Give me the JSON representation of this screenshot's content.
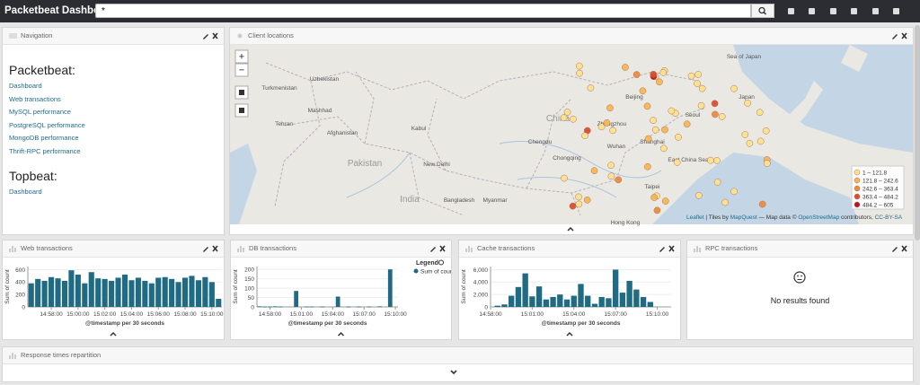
{
  "topbar": {
    "title": "Packetbeat Dashboard",
    "query": "*"
  },
  "navigation": {
    "title": "Navigation",
    "sections": [
      {
        "heading": "Packetbeat:",
        "links": [
          "Dashboard",
          "Web transactions",
          "MySQL performance",
          "PostgreSQL performance",
          "MongoDB performance",
          "Thrift-RPC performance"
        ]
      },
      {
        "heading": "Topbeat:",
        "links": [
          "Dashboard"
        ]
      }
    ]
  },
  "map": {
    "title": "Client locations",
    "controls": [
      "+",
      "−"
    ],
    "legend": [
      {
        "label": "1 – 121.8",
        "color": "#fde38a"
      },
      {
        "label": "121.8 – 242.6",
        "color": "#f7b84f"
      },
      {
        "label": "242.6 – 363.4",
        "color": "#ef8c3a"
      },
      {
        "label": "363.4 – 484.2",
        "color": "#dc4f2b"
      },
      {
        "label": "484.2 – 605",
        "color": "#b5161e"
      }
    ],
    "places": [
      "China",
      "India",
      "Pakistan",
      "Afghanistan",
      "Turkmenistan",
      "Uzbekistan",
      "Tehran",
      "Mashhad",
      "Kabul",
      "New Delhi",
      "Bangladesh",
      "Myanmar",
      "Chongqing",
      "Wuhan",
      "Shanghai",
      "Taipei",
      "Hong Kong",
      "Beijing",
      "Seoul",
      "Japan",
      "Sea of Japan",
      "East China Sea",
      "Zhengzhou",
      "Chengdu"
    ],
    "attribution": [
      {
        "text": "Leaflet",
        "link": true
      },
      {
        "text": " | Tiles by ",
        "link": false
      },
      {
        "text": "MapQuest",
        "link": true
      },
      {
        "text": " — Map data © ",
        "link": false
      },
      {
        "text": "OpenStreetMap",
        "link": true
      },
      {
        "text": " contributors, ",
        "link": false
      },
      {
        "text": "CC-BY-SA",
        "link": true
      }
    ]
  },
  "web": {
    "type": "bar",
    "title": "Web transactions",
    "y_label": "Sum of count",
    "x_label": "@timestamp per 30 seconds",
    "color": "#1f6b84",
    "grid": true,
    "x": [
      "14:56:30",
      "14:57:00",
      "14:57:30",
      "14:58:00",
      "14:58:30",
      "14:59:00",
      "14:59:30",
      "15:00:00",
      "15:00:30",
      "15:01:00",
      "15:01:30",
      "15:02:00",
      "15:02:30",
      "15:03:00",
      "15:03:30",
      "15:04:00",
      "15:04:30",
      "15:05:00",
      "15:05:30",
      "15:06:00",
      "15:06:30",
      "15:07:00",
      "15:07:30",
      "15:08:00",
      "15:08:30",
      "15:09:00",
      "15:09:30",
      "15:10:00",
      "15:10:30"
    ],
    "values": [
      380,
      450,
      420,
      480,
      460,
      420,
      590,
      520,
      380,
      560,
      460,
      450,
      420,
      470,
      520,
      430,
      470,
      420,
      380,
      470,
      480,
      450,
      400,
      470,
      500,
      430,
      480,
      400,
      130
    ],
    "xlim": [
      "14:56:15",
      "15:10:45"
    ],
    "xticks": [
      "14:58:00",
      "15:00:00",
      "15:02:00",
      "15:04:00",
      "15:06:00",
      "15:08:00",
      "15:10:00"
    ],
    "ylim": [
      0,
      650
    ],
    "yticks": [
      0,
      200,
      400,
      600
    ]
  },
  "db": {
    "type": "bar",
    "title": "DB transactions",
    "y_label": "Sum of count",
    "x_label": "@timestamp per 30 seconds",
    "color": "#1f6b84",
    "grid": true,
    "legend_title": "Legend",
    "series_name": "Sum of count",
    "x": [
      "14:57:00",
      "14:57:30",
      "14:58:00",
      "14:58:30",
      "14:59:00",
      "15:00:30",
      "15:01:30",
      "15:02:00",
      "15:03:00",
      "15:04:30",
      "15:05:30",
      "15:06:30",
      "15:07:30",
      "15:08:30",
      "15:09:30"
    ],
    "values": [
      3,
      2,
      2,
      3,
      2,
      85,
      2,
      2,
      2,
      55,
      2,
      2,
      2,
      3,
      200
    ],
    "xlim": [
      "14:56:45",
      "15:10:15"
    ],
    "xticks": [
      "14:58:00",
      "15:01:00",
      "15:04:00",
      "15:07:00",
      "15:10:00"
    ],
    "ylim": [
      0,
      215
    ],
    "yticks": [
      0,
      50,
      100,
      150,
      200
    ]
  },
  "cache": {
    "type": "bar",
    "title": "Cache transactions",
    "y_label": "Sum of count",
    "x_label": "@timestamp per 30 seconds",
    "color": "#1f6b84",
    "grid": true,
    "x": [
      "14:58:30",
      "14:59:00",
      "14:59:30",
      "15:00:00",
      "15:00:30",
      "15:01:00",
      "15:01:30",
      "15:02:00",
      "15:02:30",
      "15:03:00",
      "15:03:30",
      "15:04:00",
      "15:04:30",
      "15:05:00",
      "15:05:30",
      "15:06:00",
      "15:06:30",
      "15:07:00",
      "15:07:30",
      "15:08:00",
      "15:08:30",
      "15:09:00",
      "15:09:30"
    ],
    "values": [
      200,
      400,
      1800,
      3200,
      5400,
      1700,
      3300,
      1200,
      1600,
      2000,
      1200,
      1800,
      3700,
      1800,
      500,
      1600,
      1400,
      6000,
      2300,
      4200,
      2800,
      1600,
      800
    ],
    "xlim": [
      "14:58:00",
      "15:11:00"
    ],
    "xticks": [
      "14:58:00",
      "15:01:00",
      "15:04:00",
      "15:07:00",
      "15:10:00"
    ],
    "ylim": [
      0,
      6500
    ],
    "yticks": [
      0,
      {
        "value": 2000,
        "label": "2,000"
      },
      {
        "value": 4000,
        "label": "4,000"
      },
      {
        "value": 6000,
        "label": "6,000"
      }
    ]
  },
  "rpc": {
    "title": "RPC transactions",
    "message": "No results found"
  },
  "response": {
    "title": "Response times repartition"
  }
}
